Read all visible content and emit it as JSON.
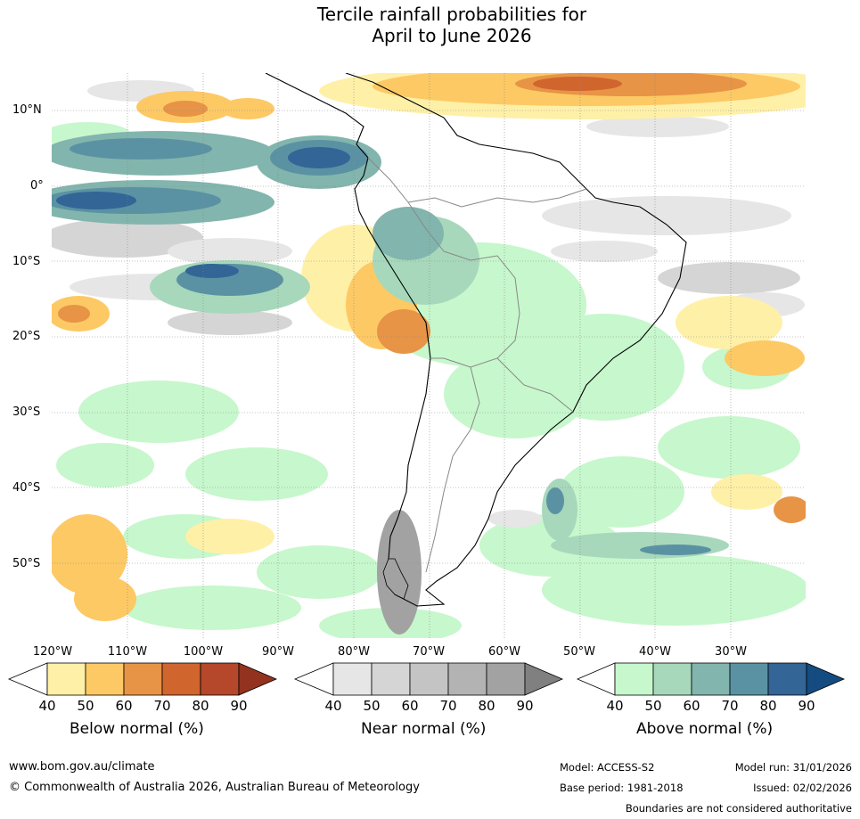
{
  "title": {
    "line1": "Tercile rainfall probabilities for",
    "line2": "April to June 2026"
  },
  "axes": {
    "lat_labels": [
      "10°N",
      "0°",
      "10°S",
      "20°S",
      "30°S",
      "40°S",
      "50°S"
    ],
    "lon_labels": [
      "120°W",
      "110°W",
      "100°W",
      "90°W",
      "80°W",
      "70°W",
      "60°W",
      "50°W",
      "40°W",
      "30°W"
    ]
  },
  "colorbars": {
    "ticks": [
      "40",
      "50",
      "60",
      "70",
      "80",
      "90"
    ],
    "below": {
      "label": "Below normal (%)",
      "colors": [
        "#fff0a8",
        "#fdc965",
        "#e79446",
        "#d0652e",
        "#b5472a",
        "#93331f"
      ]
    },
    "near": {
      "label": "Near normal (%)",
      "colors": [
        "#e6e6e6",
        "#d5d5d5",
        "#c4c4c4",
        "#b3b3b3",
        "#a2a2a2",
        "#808080"
      ]
    },
    "above": {
      "label": "Above normal (%)",
      "colors": [
        "#c7f7cc",
        "#a7d8bb",
        "#82b5ad",
        "#5b92a3",
        "#336596",
        "#144c82"
      ]
    }
  },
  "footer": {
    "website": "www.bom.gov.au/climate",
    "copyright": "© Commonwealth of Australia 2026, Australian Bureau of Meteorology",
    "model": "Model: ACCESS-S2",
    "model_run": "Model run: 31/01/2026",
    "base_period": "Base period: 1981-2018",
    "issued": "Issued: 02/02/2026",
    "disclaimer": "Boundaries are not considered authoritative"
  }
}
